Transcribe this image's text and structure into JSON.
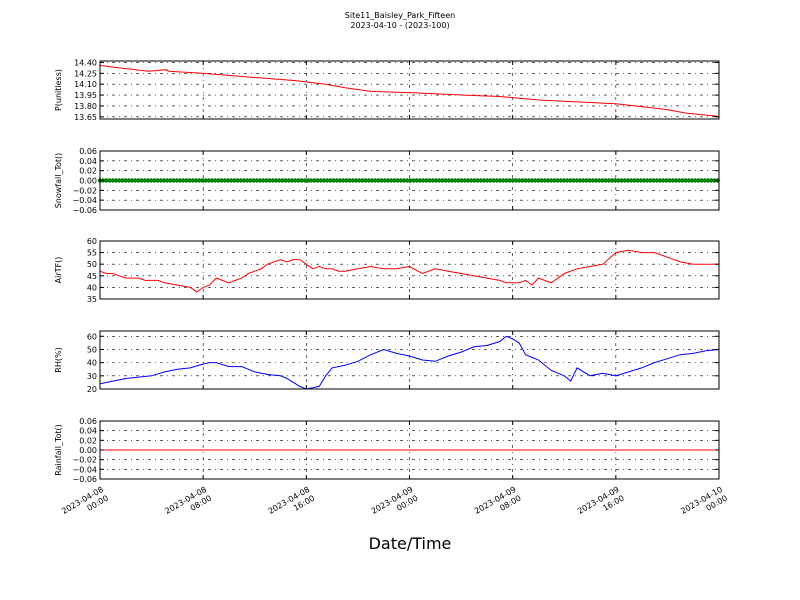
{
  "title_lines": [
    "Site11_Baisley_Park_Fifteen",
    "2023-04-10 - (2023-100)"
  ],
  "xlabel": "Date/Time",
  "colors": {
    "pressure": "#ff0000",
    "snowfall": "#008000",
    "airtemp": "#ff0000",
    "rh": "#0000ff",
    "rainfall": "#ff0000",
    "grid": "#000000"
  },
  "chart_data": [
    {
      "type": "line",
      "ylabel": "P(unitless)",
      "ylim": [
        13.62,
        14.42
      ],
      "yticks": [
        "14.40",
        "14.25",
        "14.10",
        "13.95",
        "13.80",
        "13.65"
      ],
      "grid": true,
      "series": [
        {
          "x": [
            "2023-04-08 00:00",
            "2023-04-08 01:45",
            "2023-04-08 03:45",
            "2023-04-08 05:10",
            "2023-04-08 05:20",
            "2023-04-08 07:55",
            "2023-04-08 11:30",
            "2023-04-08 15:10",
            "2023-04-08 17:30",
            "2023-04-08 19:00",
            "2023-04-08 21:00",
            "2023-04-09 00:30",
            "2023-04-09 04:15",
            "2023-04-09 07:00",
            "2023-04-09 10:10",
            "2023-04-09 16:00",
            "2023-04-09 18:30",
            "2023-04-09 20:00",
            "2023-04-09 21:30",
            "2023-04-09 23:50",
            "2023-04-10 00:00"
          ],
          "y": [
            14.36,
            14.32,
            14.28,
            14.3,
            14.28,
            14.25,
            14.2,
            14.15,
            14.1,
            14.05,
            14.0,
            13.98,
            13.95,
            13.93,
            13.88,
            13.83,
            13.78,
            13.75,
            13.7,
            13.66,
            13.65
          ]
        }
      ]
    },
    {
      "type": "line",
      "ylabel": "Snowfall_Tot()",
      "ylim": [
        -0.06,
        0.06
      ],
      "yticks": [
        "0.06",
        "0.04",
        "0.02",
        "0.00",
        "−0.02",
        "−0.04",
        "−0.06"
      ],
      "grid": true,
      "markers": true,
      "series": [
        {
          "x": [
            "2023-04-08 00:00",
            "2023-04-10 00:00"
          ],
          "y": [
            0.0,
            0.0
          ]
        }
      ]
    },
    {
      "type": "line",
      "ylabel": "AirTF()",
      "ylim": [
        35,
        60
      ],
      "yticks": [
        "60",
        "55",
        "50",
        "45",
        "40",
        "35"
      ],
      "grid": true,
      "series": [
        {
          "x": [
            "2023-04-08 00:00",
            "2023-04-08 00:30",
            "2023-04-08 01:00",
            "2023-04-08 01:30",
            "2023-04-08 02:00",
            "2023-04-08 02:30",
            "2023-04-08 03:00",
            "2023-04-08 03:30",
            "2023-04-08 04:00",
            "2023-04-08 04:30",
            "2023-04-08 05:00",
            "2023-04-08 06:00",
            "2023-04-08 07:00",
            "2023-04-08 07:30",
            "2023-04-08 08:00",
            "2023-04-08 08:30",
            "2023-04-08 09:00",
            "2023-04-08 09:30",
            "2023-04-08 10:00",
            "2023-04-08 10:30",
            "2023-04-08 11:00",
            "2023-04-08 11:30",
            "2023-04-08 12:00",
            "2023-04-08 12:30",
            "2023-04-08 13:00",
            "2023-04-08 13:30",
            "2023-04-08 14:00",
            "2023-04-08 14:30",
            "2023-04-08 15:00",
            "2023-04-08 15:30",
            "2023-04-08 16:00",
            "2023-04-08 16:30",
            "2023-04-08 17:00",
            "2023-04-08 17:30",
            "2023-04-08 18:00",
            "2023-04-08 18:30",
            "2023-04-08 19:00",
            "2023-04-08 20:00",
            "2023-04-08 21:00",
            "2023-04-08 22:00",
            "2023-04-08 23:00",
            "2023-04-09 00:00",
            "2023-04-09 01:00",
            "2023-04-09 02:00",
            "2023-04-09 03:00",
            "2023-04-09 04:00",
            "2023-04-09 05:00",
            "2023-04-09 06:00",
            "2023-04-09 07:00",
            "2023-04-09 07:30",
            "2023-04-09 08:00",
            "2023-04-09 08:30",
            "2023-04-09 09:00",
            "2023-04-09 09:30",
            "2023-04-09 10:00",
            "2023-04-09 11:00",
            "2023-04-09 12:00",
            "2023-04-09 13:00",
            "2023-04-09 14:00",
            "2023-04-09 15:00",
            "2023-04-09 16:00",
            "2023-04-09 17:00",
            "2023-04-09 18:00",
            "2023-04-09 18:30",
            "2023-04-09 19:00",
            "2023-04-09 20:00",
            "2023-04-09 21:00",
            "2023-04-09 22:00",
            "2023-04-09 23:00",
            "2023-04-10 00:00"
          ],
          "y": [
            47,
            46,
            46,
            45,
            44,
            44,
            44,
            43,
            43,
            43,
            42,
            41,
            40,
            38,
            40,
            41,
            44,
            43,
            42,
            43,
            44,
            46,
            47,
            48,
            50,
            51,
            52,
            51,
            52,
            52,
            50,
            48,
            49,
            48,
            48,
            47,
            47,
            48,
            49,
            48,
            48,
            49,
            46,
            48,
            47,
            46,
            45,
            44,
            43,
            42,
            42,
            42,
            43,
            41,
            44,
            42,
            46,
            48,
            49,
            50,
            55,
            56,
            55,
            55,
            55,
            53,
            51,
            50,
            50,
            50
          ]
        }
      ]
    },
    {
      "type": "line",
      "ylabel": "RH(%)",
      "ylim": [
        20,
        64
      ],
      "yticks": [
        "60",
        "50",
        "40",
        "30",
        "20"
      ],
      "grid": true,
      "series": [
        {
          "x": [
            "2023-04-08 00:00",
            "2023-04-08 01:00",
            "2023-04-08 02:00",
            "2023-04-08 03:00",
            "2023-04-08 04:00",
            "2023-04-08 05:00",
            "2023-04-08 06:00",
            "2023-04-08 07:00",
            "2023-04-08 08:00",
            "2023-04-08 08:30",
            "2023-04-08 09:00",
            "2023-04-08 10:00",
            "2023-04-08 11:00",
            "2023-04-08 12:00",
            "2023-04-08 13:00",
            "2023-04-08 14:00",
            "2023-04-08 14:30",
            "2023-04-08 15:00",
            "2023-04-08 15:30",
            "2023-04-08 16:00",
            "2023-04-08 16:30",
            "2023-04-08 17:00",
            "2023-04-08 17:30",
            "2023-04-08 18:00",
            "2023-04-08 19:00",
            "2023-04-08 20:00",
            "2023-04-08 21:00",
            "2023-04-08 22:00",
            "2023-04-08 23:00",
            "2023-04-09 00:00",
            "2023-04-09 01:00",
            "2023-04-09 02:00",
            "2023-04-09 03:00",
            "2023-04-09 04:00",
            "2023-04-09 05:00",
            "2023-04-09 06:00",
            "2023-04-09 07:00",
            "2023-04-09 07:30",
            "2023-04-09 08:00",
            "2023-04-09 08:30",
            "2023-04-09 09:00",
            "2023-04-09 10:00",
            "2023-04-09 11:00",
            "2023-04-09 12:00",
            "2023-04-09 12:30",
            "2023-04-09 13:00",
            "2023-04-09 14:00",
            "2023-04-09 15:00",
            "2023-04-09 16:00",
            "2023-04-09 17:00",
            "2023-04-09 18:00",
            "2023-04-09 19:00",
            "2023-04-09 20:00",
            "2023-04-09 21:00",
            "2023-04-09 22:00",
            "2023-04-09 23:00",
            "2023-04-10 00:00"
          ],
          "y": [
            24,
            26,
            28,
            29,
            30,
            33,
            35,
            36,
            39,
            40,
            40,
            37,
            37,
            33,
            31,
            30,
            28,
            25,
            22,
            20,
            21,
            22,
            30,
            36,
            38,
            41,
            46,
            50,
            47,
            45,
            42,
            41,
            45,
            48,
            52,
            53,
            56,
            60,
            58,
            55,
            46,
            42,
            34,
            30,
            26,
            36,
            30,
            32,
            30,
            33,
            36,
            40,
            43,
            46,
            47,
            49,
            50
          ]
        }
      ]
    },
    {
      "type": "line",
      "ylabel": "Rainfall_Tot()",
      "ylim": [
        -0.06,
        0.06
      ],
      "yticks": [
        "0.06",
        "0.04",
        "0.02",
        "0.00",
        "−0.02",
        "−0.04",
        "−0.06"
      ],
      "grid": true,
      "series": [
        {
          "x": [
            "2023-04-08 00:00",
            "2023-04-10 00:00"
          ],
          "y": [
            0.0,
            0.0
          ]
        }
      ]
    }
  ],
  "xticks": [
    {
      "x": "2023-04-08 00:00",
      "line1": "2023-04-08",
      "line2": "00:00"
    },
    {
      "x": "2023-04-08 08:00",
      "line1": "2023-04-08",
      "line2": "08:00"
    },
    {
      "x": "2023-04-08 16:00",
      "line1": "2023-04-08",
      "line2": "16:00"
    },
    {
      "x": "2023-04-09 00:00",
      "line1": "2023-04-09",
      "line2": "00:00"
    },
    {
      "x": "2023-04-09 08:00",
      "line1": "2023-04-09",
      "line2": "08:00"
    },
    {
      "x": "2023-04-09 16:00",
      "line1": "2023-04-09",
      "line2": "16:00"
    },
    {
      "x": "2023-04-10 00:00",
      "line1": "2023-04-10",
      "line2": "00:00"
    }
  ]
}
